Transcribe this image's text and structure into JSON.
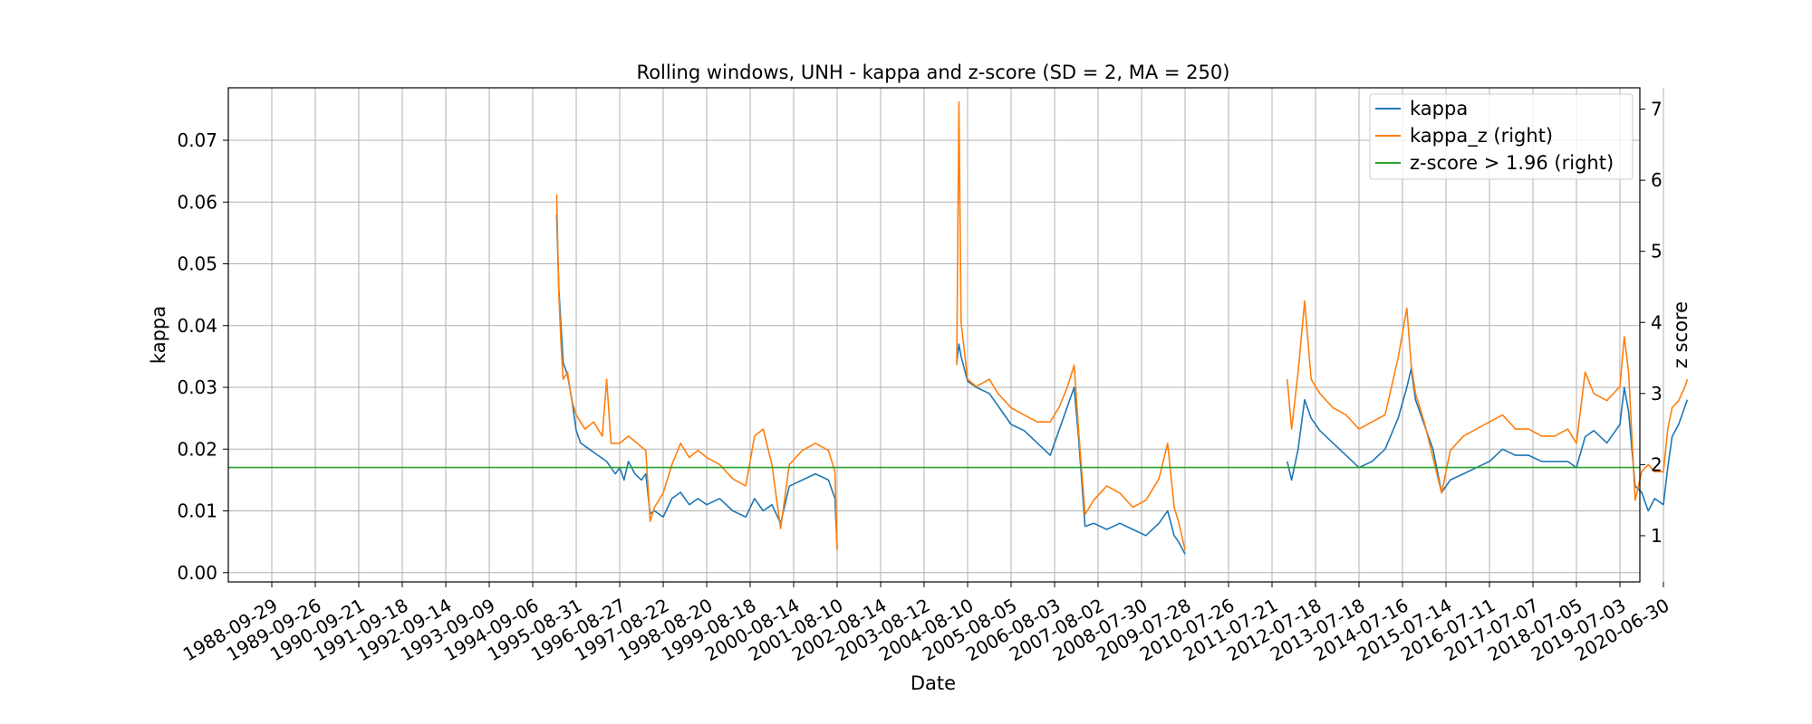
{
  "chart_data": {
    "type": "line",
    "title": "Rolling windows, UNH - kappa and z-score (SD = 2, MA = 250)",
    "xlabel": "Date",
    "ylabel_left": "kappa",
    "ylabel_right": "z score",
    "x_tick_labels": [
      "1988-09-29",
      "1989-09-26",
      "1990-09-21",
      "1991-09-18",
      "1992-09-14",
      "1993-09-09",
      "1994-09-06",
      "1995-08-31",
      "1996-08-27",
      "1997-08-22",
      "1998-08-20",
      "1999-08-18",
      "2000-08-14",
      "2001-08-10",
      "2002-08-14",
      "2003-08-12",
      "2004-08-10",
      "2005-08-05",
      "2006-08-03",
      "2007-08-02",
      "2008-07-30",
      "2009-07-28",
      "2010-07-26",
      "2011-07-21",
      "2012-07-18",
      "2013-07-18",
      "2014-07-16",
      "2015-07-14",
      "2016-07-11",
      "2017-07-07",
      "2018-07-05",
      "2019-07-03",
      "2020-06-30"
    ],
    "y_left_ticks": [
      "0.00",
      "0.01",
      "0.02",
      "0.03",
      "0.04",
      "0.05",
      "0.06",
      "0.07"
    ],
    "y_right_ticks": [
      "1",
      "2",
      "3",
      "4",
      "5",
      "6",
      "7"
    ],
    "y_left_lim": [
      -0.0015,
      0.0785
    ],
    "y_right_lim": [
      0.35,
      7.3
    ],
    "x_range_index": [
      -1.0,
      32.55
    ],
    "grid": true,
    "legend_position": "top-right",
    "colors": {
      "kappa": "#1f77b4",
      "kappa_z": "#ff7f0e",
      "threshold": "#2ca02c"
    },
    "series": [
      {
        "name": "kappa",
        "axis": "left",
        "segments": [
          [
            [
              6.55,
              0.058
            ],
            [
              6.6,
              0.046
            ],
            [
              6.65,
              0.04
            ],
            [
              6.7,
              0.034
            ],
            [
              6.8,
              0.032
            ],
            [
              6.9,
              0.028
            ],
            [
              7.0,
              0.023
            ],
            [
              7.1,
              0.021
            ],
            [
              7.3,
              0.02
            ],
            [
              7.5,
              0.019
            ],
            [
              7.7,
              0.018
            ],
            [
              7.9,
              0.016
            ],
            [
              8.0,
              0.017
            ],
            [
              8.1,
              0.015
            ],
            [
              8.2,
              0.018
            ],
            [
              8.35,
              0.016
            ],
            [
              8.5,
              0.015
            ],
            [
              8.6,
              0.016
            ],
            [
              8.7,
              0.0095
            ],
            [
              8.8,
              0.01
            ],
            [
              9.0,
              0.009
            ],
            [
              9.2,
              0.012
            ],
            [
              9.4,
              0.013
            ],
            [
              9.6,
              0.011
            ],
            [
              9.8,
              0.012
            ],
            [
              10.0,
              0.011
            ],
            [
              10.3,
              0.012
            ],
            [
              10.6,
              0.01
            ],
            [
              10.9,
              0.009
            ],
            [
              11.1,
              0.012
            ],
            [
              11.3,
              0.01
            ],
            [
              11.5,
              0.011
            ],
            [
              11.7,
              0.008
            ],
            [
              11.9,
              0.014
            ],
            [
              12.2,
              0.015
            ],
            [
              12.5,
              0.016
            ],
            [
              12.8,
              0.015
            ],
            [
              12.95,
              0.012
            ],
            [
              13.0,
              0.004
            ]
          ],
          [
            [
              15.75,
              0.034
            ],
            [
              15.8,
              0.037
            ],
            [
              15.85,
              0.035
            ],
            [
              16.0,
              0.031
            ],
            [
              16.2,
              0.03
            ],
            [
              16.5,
              0.029
            ],
            [
              16.7,
              0.027
            ],
            [
              17.0,
              0.024
            ],
            [
              17.3,
              0.023
            ],
            [
              17.6,
              0.021
            ],
            [
              17.9,
              0.019
            ],
            [
              18.1,
              0.023
            ],
            [
              18.3,
              0.027
            ],
            [
              18.45,
              0.03
            ],
            [
              18.55,
              0.022
            ],
            [
              18.7,
              0.0075
            ],
            [
              18.9,
              0.008
            ],
            [
              19.2,
              0.007
            ],
            [
              19.5,
              0.008
            ],
            [
              19.8,
              0.007
            ],
            [
              20.1,
              0.006
            ],
            [
              20.4,
              0.008
            ],
            [
              20.6,
              0.01
            ],
            [
              20.75,
              0.006
            ],
            [
              20.85,
              0.005
            ],
            [
              21.0,
              0.003
            ]
          ],
          [
            [
              23.35,
              0.018
            ],
            [
              23.45,
              0.015
            ],
            [
              23.6,
              0.02
            ],
            [
              23.75,
              0.028
            ],
            [
              23.9,
              0.025
            ],
            [
              24.1,
              0.023
            ],
            [
              24.4,
              0.021
            ],
            [
              24.7,
              0.019
            ],
            [
              25.0,
              0.017
            ],
            [
              25.3,
              0.018
            ],
            [
              25.6,
              0.02
            ],
            [
              25.9,
              0.025
            ],
            [
              26.1,
              0.03
            ],
            [
              26.2,
              0.033
            ],
            [
              26.3,
              0.028
            ],
            [
              26.5,
              0.024
            ],
            [
              26.7,
              0.02
            ],
            [
              26.9,
              0.013
            ],
            [
              27.1,
              0.015
            ],
            [
              27.4,
              0.016
            ],
            [
              27.7,
              0.017
            ],
            [
              28.0,
              0.018
            ],
            [
              28.3,
              0.02
            ],
            [
              28.6,
              0.019
            ],
            [
              28.9,
              0.019
            ],
            [
              29.2,
              0.018
            ],
            [
              29.5,
              0.018
            ],
            [
              29.8,
              0.018
            ],
            [
              30.0,
              0.017
            ],
            [
              30.2,
              0.022
            ],
            [
              30.4,
              0.023
            ],
            [
              30.7,
              0.021
            ],
            [
              31.0,
              0.024
            ],
            [
              31.1,
              0.03
            ],
            [
              31.2,
              0.026
            ],
            [
              31.35,
              0.014
            ],
            [
              31.5,
              0.013
            ],
            [
              31.65,
              0.01
            ],
            [
              31.8,
              0.012
            ],
            [
              32.0,
              0.011
            ],
            [
              32.1,
              0.017
            ],
            [
              32.2,
              0.022
            ],
            [
              32.35,
              0.024
            ],
            [
              32.5,
              0.027
            ],
            [
              32.55,
              0.028
            ]
          ]
        ]
      },
      {
        "name": "kappa_z (right)",
        "axis": "right",
        "segments": [
          [
            [
              6.55,
              5.8
            ],
            [
              6.6,
              4.4
            ],
            [
              6.65,
              3.7
            ],
            [
              6.7,
              3.2
            ],
            [
              6.8,
              3.3
            ],
            [
              6.9,
              2.9
            ],
            [
              7.0,
              2.7
            ],
            [
              7.2,
              2.5
            ],
            [
              7.4,
              2.6
            ],
            [
              7.6,
              2.4
            ],
            [
              7.7,
              3.2
            ],
            [
              7.8,
              2.3
            ],
            [
              8.0,
              2.3
            ],
            [
              8.2,
              2.4
            ],
            [
              8.4,
              2.3
            ],
            [
              8.6,
              2.2
            ],
            [
              8.7,
              1.2
            ],
            [
              8.8,
              1.4
            ],
            [
              9.0,
              1.6
            ],
            [
              9.2,
              2.0
            ],
            [
              9.4,
              2.3
            ],
            [
              9.6,
              2.1
            ],
            [
              9.8,
              2.2
            ],
            [
              10.0,
              2.1
            ],
            [
              10.3,
              2.0
            ],
            [
              10.6,
              1.8
            ],
            [
              10.9,
              1.7
            ],
            [
              11.1,
              2.4
            ],
            [
              11.3,
              2.5
            ],
            [
              11.5,
              2.0
            ],
            [
              11.7,
              1.1
            ],
            [
              11.9,
              2.0
            ],
            [
              12.2,
              2.2
            ],
            [
              12.5,
              2.3
            ],
            [
              12.8,
              2.2
            ],
            [
              12.95,
              1.9
            ],
            [
              13.0,
              0.8
            ]
          ],
          [
            [
              15.75,
              3.4
            ],
            [
              15.8,
              7.1
            ],
            [
              15.85,
              4.0
            ],
            [
              16.0,
              3.2
            ],
            [
              16.2,
              3.1
            ],
            [
              16.5,
              3.2
            ],
            [
              16.7,
              3.0
            ],
            [
              17.0,
              2.8
            ],
            [
              17.3,
              2.7
            ],
            [
              17.6,
              2.6
            ],
            [
              17.9,
              2.6
            ],
            [
              18.1,
              2.8
            ],
            [
              18.3,
              3.1
            ],
            [
              18.45,
              3.4
            ],
            [
              18.55,
              2.5
            ],
            [
              18.7,
              1.3
            ],
            [
              18.9,
              1.5
            ],
            [
              19.2,
              1.7
            ],
            [
              19.5,
              1.6
            ],
            [
              19.8,
              1.4
            ],
            [
              20.1,
              1.5
            ],
            [
              20.4,
              1.8
            ],
            [
              20.6,
              2.3
            ],
            [
              20.75,
              1.4
            ],
            [
              20.85,
              1.2
            ],
            [
              21.0,
              0.8
            ]
          ],
          [
            [
              23.35,
              3.2
            ],
            [
              23.45,
              2.5
            ],
            [
              23.6,
              3.3
            ],
            [
              23.75,
              4.3
            ],
            [
              23.9,
              3.2
            ],
            [
              24.1,
              3.0
            ],
            [
              24.4,
              2.8
            ],
            [
              24.7,
              2.7
            ],
            [
              25.0,
              2.5
            ],
            [
              25.3,
              2.6
            ],
            [
              25.6,
              2.7
            ],
            [
              25.9,
              3.5
            ],
            [
              26.1,
              4.2
            ],
            [
              26.2,
              3.4
            ],
            [
              26.3,
              3.0
            ],
            [
              26.5,
              2.6
            ],
            [
              26.7,
              2.1
            ],
            [
              26.9,
              1.6
            ],
            [
              27.1,
              2.2
            ],
            [
              27.4,
              2.4
            ],
            [
              27.7,
              2.5
            ],
            [
              28.0,
              2.6
            ],
            [
              28.3,
              2.7
            ],
            [
              28.6,
              2.5
            ],
            [
              28.9,
              2.5
            ],
            [
              29.2,
              2.4
            ],
            [
              29.5,
              2.4
            ],
            [
              29.8,
              2.5
            ],
            [
              30.0,
              2.3
            ],
            [
              30.2,
              3.3
            ],
            [
              30.4,
              3.0
            ],
            [
              30.7,
              2.9
            ],
            [
              31.0,
              3.1
            ],
            [
              31.1,
              3.8
            ],
            [
              31.2,
              3.3
            ],
            [
              31.35,
              1.5
            ],
            [
              31.5,
              1.9
            ],
            [
              31.65,
              2.0
            ],
            [
              31.8,
              1.9
            ],
            [
              32.0,
              1.9
            ],
            [
              32.1,
              2.5
            ],
            [
              32.2,
              2.8
            ],
            [
              32.35,
              2.9
            ],
            [
              32.5,
              3.1
            ],
            [
              32.55,
              3.2
            ]
          ]
        ]
      },
      {
        "name": "z-score > 1.96 (right)",
        "axis": "right",
        "value": 1.96
      }
    ]
  }
}
